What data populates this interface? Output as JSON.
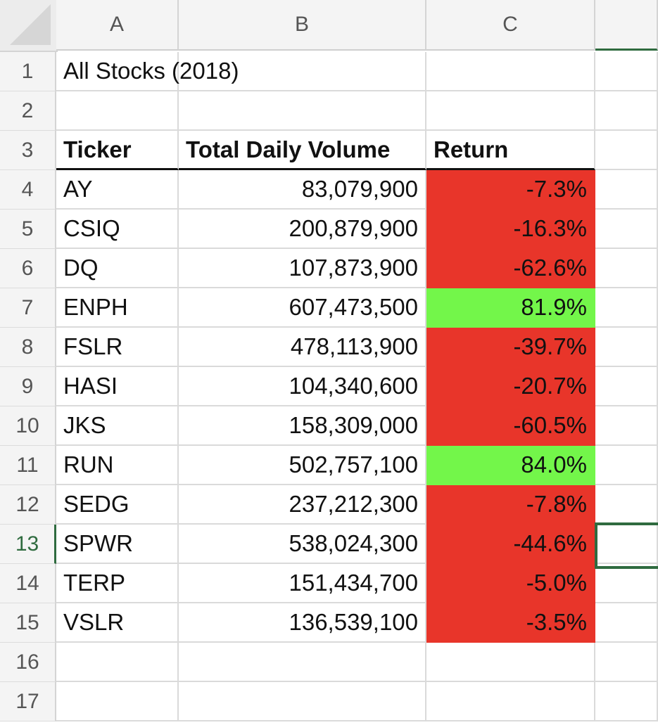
{
  "columns": [
    "A",
    "B",
    "C"
  ],
  "row_numbers": [
    "1",
    "2",
    "3",
    "4",
    "5",
    "6",
    "7",
    "8",
    "9",
    "10",
    "11",
    "12",
    "13",
    "14",
    "15",
    "16",
    "17"
  ],
  "title": "All Stocks (2018)",
  "headers": {
    "ticker": "Ticker",
    "volume": "Total Daily Volume",
    "return": "Return"
  },
  "rows": [
    {
      "ticker": "AY",
      "volume": "83,079,900",
      "return": "-7.3%",
      "status": "negative"
    },
    {
      "ticker": "CSIQ",
      "volume": "200,879,900",
      "return": "-16.3%",
      "status": "negative"
    },
    {
      "ticker": "DQ",
      "volume": "107,873,900",
      "return": "-62.6%",
      "status": "negative"
    },
    {
      "ticker": "ENPH",
      "volume": "607,473,500",
      "return": "81.9%",
      "status": "positive"
    },
    {
      "ticker": "FSLR",
      "volume": "478,113,900",
      "return": "-39.7%",
      "status": "negative"
    },
    {
      "ticker": "HASI",
      "volume": "104,340,600",
      "return": "-20.7%",
      "status": "negative"
    },
    {
      "ticker": "JKS",
      "volume": "158,309,000",
      "return": "-60.5%",
      "status": "negative"
    },
    {
      "ticker": "RUN",
      "volume": "502,757,100",
      "return": "84.0%",
      "status": "positive"
    },
    {
      "ticker": "SEDG",
      "volume": "237,212,300",
      "return": "-7.8%",
      "status": "negative"
    },
    {
      "ticker": "SPWR",
      "volume": "538,024,300",
      "return": "-44.6%",
      "status": "negative"
    },
    {
      "ticker": "TERP",
      "volume": "151,434,700",
      "return": "-5.0%",
      "status": "negative"
    },
    {
      "ticker": "VSLR",
      "volume": "136,539,100",
      "return": "-3.5%",
      "status": "negative"
    }
  ],
  "colors": {
    "negative": "#e8352a",
    "positive": "#73f64a",
    "selection": "#2f6b3f"
  },
  "selected_row": "13"
}
